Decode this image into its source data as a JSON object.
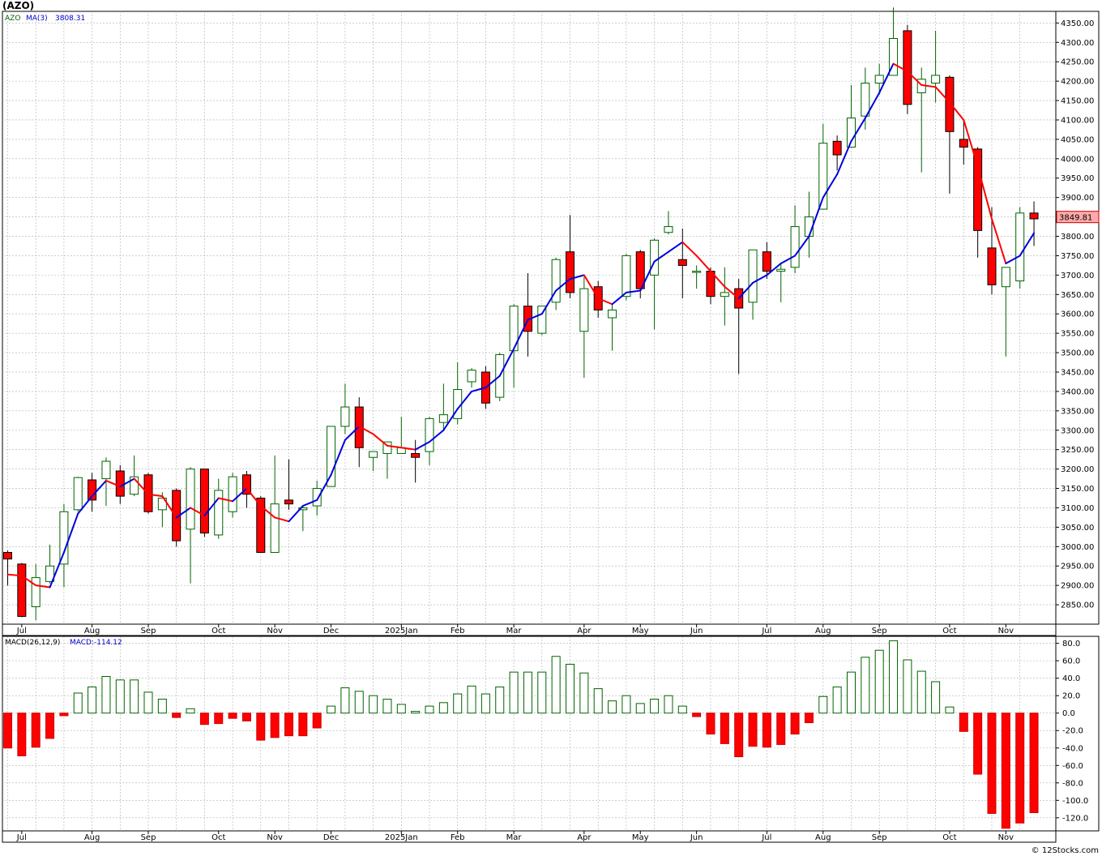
{
  "title": "(AZO)",
  "credit": "© 12Stocks.com",
  "colors": {
    "up_candle_stroke": "#006400",
    "down_candle_fill": "#ff0000",
    "ma_up": "#0000dd",
    "ma_down": "#ff0000",
    "grid": "#b0b0b0",
    "last_price_box": "#ffaaaa"
  },
  "price_panel": {
    "legend_symbol": "AZO",
    "legend_ma": "MA(3)",
    "legend_ma_value": "3808.31",
    "last_price_label": "3849.81"
  },
  "macd_panel": {
    "legend_macd": "MACD(26,12,9)",
    "legend_macd_value": "MACD:-114.12"
  },
  "chart_data": [
    {
      "type": "candlestick",
      "ylim": [
        2800,
        4380
      ],
      "yticks": [
        2850,
        2900,
        2950,
        3000,
        3050,
        3100,
        3150,
        3200,
        3250,
        3300,
        3350,
        3400,
        3450,
        3500,
        3550,
        3600,
        3650,
        3700,
        3750,
        3800,
        3850,
        3900,
        3950,
        4000,
        4050,
        4100,
        4150,
        4200,
        4250,
        4300,
        4350
      ],
      "ytick_labels": [
        "2850.00",
        "2900.00",
        "2950.00",
        "3000.00",
        "3050.00",
        "3100.00",
        "3150.00",
        "3200.00",
        "3250.00",
        "3300.00",
        "3350.00",
        "3400.00",
        "3450.00",
        "3500.00",
        "3550.00",
        "3600.00",
        "3650.00",
        "3700.00",
        "3750.00",
        "3800.00",
        "3850.00",
        "3900.00",
        "3950.00",
        "4000.00",
        "4050.00",
        "4100.00",
        "4150.00",
        "4200.00",
        "4250.00",
        "4300.00",
        "4350.00"
      ],
      "x_month_labels": [
        {
          "label": "Jul",
          "bar": 1
        },
        {
          "label": "Aug",
          "bar": 6
        },
        {
          "label": "Sep",
          "bar": 10
        },
        {
          "label": "Oct",
          "bar": 15
        },
        {
          "label": "Nov",
          "bar": 19
        },
        {
          "label": "Dec",
          "bar": 23
        },
        {
          "label": "2025Jan",
          "bar": 28
        },
        {
          "label": "Feb",
          "bar": 32
        },
        {
          "label": "Mar",
          "bar": 36
        },
        {
          "label": "Apr",
          "bar": 41
        },
        {
          "label": "May",
          "bar": 45
        },
        {
          "label": "Jun",
          "bar": 49
        },
        {
          "label": "Jul",
          "bar": 54
        },
        {
          "label": "Aug",
          "bar": 58
        },
        {
          "label": "Sep",
          "bar": 62
        },
        {
          "label": "Oct",
          "bar": 67
        },
        {
          "label": "Nov",
          "bar": 71
        }
      ],
      "candles": [
        {
          "o": 2985,
          "h": 2990,
          "l": 2900,
          "c": 2968
        },
        {
          "o": 2955,
          "h": 2958,
          "l": 2818,
          "c": 2820
        },
        {
          "o": 2845,
          "h": 2955,
          "l": 2810,
          "c": 2920
        },
        {
          "o": 2910,
          "h": 3005,
          "l": 2905,
          "c": 2950
        },
        {
          "o": 2955,
          "h": 3110,
          "l": 2895,
          "c": 3090
        },
        {
          "o": 3095,
          "h": 3180,
          "l": 3090,
          "c": 3178
        },
        {
          "o": 3172,
          "h": 3190,
          "l": 3090,
          "c": 3120
        },
        {
          "o": 3175,
          "h": 3230,
          "l": 3105,
          "c": 3220
        },
        {
          "o": 3195,
          "h": 3210,
          "l": 3110,
          "c": 3130
        },
        {
          "o": 3135,
          "h": 3235,
          "l": 3130,
          "c": 3180
        },
        {
          "o": 3185,
          "h": 3190,
          "l": 3085,
          "c": 3090
        },
        {
          "o": 3095,
          "h": 3140,
          "l": 3050,
          "c": 3125
        },
        {
          "o": 3145,
          "h": 3150,
          "l": 3000,
          "c": 3015
        },
        {
          "o": 3045,
          "h": 3205,
          "l": 2905,
          "c": 3200
        },
        {
          "o": 3200,
          "h": 3200,
          "l": 3025,
          "c": 3035
        },
        {
          "o": 3030,
          "h": 3175,
          "l": 3020,
          "c": 3145
        },
        {
          "o": 3090,
          "h": 3190,
          "l": 3075,
          "c": 3180
        },
        {
          "o": 3185,
          "h": 3195,
          "l": 3100,
          "c": 3135
        },
        {
          "o": 3125,
          "h": 3130,
          "l": 2985,
          "c": 2985
        },
        {
          "o": 2985,
          "h": 3235,
          "l": 2985,
          "c": 3110
        },
        {
          "o": 3120,
          "h": 3225,
          "l": 3095,
          "c": 3110
        },
        {
          "o": 3095,
          "h": 3105,
          "l": 3040,
          "c": 3100
        },
        {
          "o": 3105,
          "h": 3170,
          "l": 3080,
          "c": 3150
        },
        {
          "o": 3155,
          "h": 3310,
          "l": 3155,
          "c": 3310
        },
        {
          "o": 3310,
          "h": 3420,
          "l": 3290,
          "c": 3360
        },
        {
          "o": 3360,
          "h": 3385,
          "l": 3205,
          "c": 3255
        },
        {
          "o": 3230,
          "h": 3245,
          "l": 3195,
          "c": 3245
        },
        {
          "o": 3240,
          "h": 3270,
          "l": 3175,
          "c": 3270
        },
        {
          "o": 3240,
          "h": 3335,
          "l": 3240,
          "c": 3255
        },
        {
          "o": 3240,
          "h": 3275,
          "l": 3165,
          "c": 3230
        },
        {
          "o": 3245,
          "h": 3335,
          "l": 3210,
          "c": 3330
        },
        {
          "o": 3320,
          "h": 3420,
          "l": 3300,
          "c": 3340
        },
        {
          "o": 3330,
          "h": 3475,
          "l": 3315,
          "c": 3405
        },
        {
          "o": 3425,
          "h": 3460,
          "l": 3410,
          "c": 3455
        },
        {
          "o": 3450,
          "h": 3465,
          "l": 3355,
          "c": 3370
        },
        {
          "o": 3385,
          "h": 3500,
          "l": 3375,
          "c": 3495
        },
        {
          "o": 3505,
          "h": 3625,
          "l": 3410,
          "c": 3620
        },
        {
          "o": 3620,
          "h": 3705,
          "l": 3490,
          "c": 3555
        },
        {
          "o": 3550,
          "h": 3620,
          "l": 3545,
          "c": 3620
        },
        {
          "o": 3630,
          "h": 3745,
          "l": 3610,
          "c": 3740
        },
        {
          "o": 3760,
          "h": 3855,
          "l": 3640,
          "c": 3655
        },
        {
          "o": 3555,
          "h": 3695,
          "l": 3435,
          "c": 3665
        },
        {
          "o": 3670,
          "h": 3685,
          "l": 3590,
          "c": 3610
        },
        {
          "o": 3590,
          "h": 3625,
          "l": 3505,
          "c": 3610
        },
        {
          "o": 3645,
          "h": 3755,
          "l": 3635,
          "c": 3750
        },
        {
          "o": 3760,
          "h": 3765,
          "l": 3640,
          "c": 3665
        },
        {
          "o": 3700,
          "h": 3795,
          "l": 3560,
          "c": 3790
        },
        {
          "o": 3810,
          "h": 3865,
          "l": 3805,
          "c": 3825
        },
        {
          "o": 3740,
          "h": 3820,
          "l": 3640,
          "c": 3725
        },
        {
          "o": 3710,
          "h": 3725,
          "l": 3665,
          "c": 3710
        },
        {
          "o": 3710,
          "h": 3720,
          "l": 3625,
          "c": 3645
        },
        {
          "o": 3645,
          "h": 3720,
          "l": 3570,
          "c": 3655
        },
        {
          "o": 3665,
          "h": 3690,
          "l": 3445,
          "c": 3615
        },
        {
          "o": 3630,
          "h": 3755,
          "l": 3585,
          "c": 3765
        },
        {
          "o": 3760,
          "h": 3785,
          "l": 3690,
          "c": 3710
        },
        {
          "o": 3710,
          "h": 3730,
          "l": 3630,
          "c": 3715
        },
        {
          "o": 3720,
          "h": 3880,
          "l": 3705,
          "c": 3825
        },
        {
          "o": 3800,
          "h": 3915,
          "l": 3745,
          "c": 3850
        },
        {
          "o": 3870,
          "h": 4090,
          "l": 3870,
          "c": 4040
        },
        {
          "o": 4045,
          "h": 4060,
          "l": 3970,
          "c": 4010
        },
        {
          "o": 4030,
          "h": 4190,
          "l": 4030,
          "c": 4105
        },
        {
          "o": 4110,
          "h": 4235,
          "l": 4075,
          "c": 4195
        },
        {
          "o": 4195,
          "h": 4245,
          "l": 4165,
          "c": 4215
        },
        {
          "o": 4215,
          "h": 4390,
          "l": 4215,
          "c": 4310
        },
        {
          "o": 4330,
          "h": 4345,
          "l": 4115,
          "c": 4140
        },
        {
          "o": 4170,
          "h": 4235,
          "l": 3965,
          "c": 4205
        },
        {
          "o": 4195,
          "h": 4330,
          "l": 4145,
          "c": 4215
        },
        {
          "o": 4210,
          "h": 4215,
          "l": 3910,
          "c": 4070
        },
        {
          "o": 4050,
          "h": 4100,
          "l": 3985,
          "c": 4030
        },
        {
          "o": 4025,
          "h": 4030,
          "l": 3745,
          "c": 3815
        },
        {
          "o": 3770,
          "h": 3875,
          "l": 3650,
          "c": 3675
        },
        {
          "o": 3670,
          "h": 3715,
          "l": 3490,
          "c": 3720
        },
        {
          "o": 3685,
          "h": 3875,
          "l": 3665,
          "c": 3860
        },
        {
          "o": 3860,
          "h": 3890,
          "l": 3775,
          "c": 3845
        }
      ],
      "ma3": [
        2928,
        2925,
        2900,
        2895,
        2985,
        3085,
        3130,
        3170,
        3155,
        3175,
        3135,
        3130,
        3075,
        3100,
        3080,
        3125,
        3117,
        3150,
        3105,
        3075,
        3065,
        3105,
        3120,
        3185,
        3275,
        3310,
        3290,
        3260,
        3255,
        3250,
        3270,
        3300,
        3355,
        3400,
        3410,
        3440,
        3510,
        3585,
        3600,
        3660,
        3690,
        3700,
        3640,
        3625,
        3655,
        3660,
        3735,
        3760,
        3785,
        3750,
        3710,
        3670,
        3640,
        3680,
        3700,
        3730,
        3750,
        3800,
        3900,
        3960,
        4045,
        4105,
        4170,
        4245,
        4225,
        4190,
        4185,
        4145,
        4100,
        3980,
        3845,
        3730,
        3750,
        3808.31
      ]
    },
    {
      "type": "bar",
      "name": "MACD(26,12,9)",
      "ylim": [
        -135,
        88
      ],
      "yticks": [
        -120,
        -100,
        -80,
        -60,
        -40,
        -20,
        0,
        20,
        40,
        60,
        80
      ],
      "ytick_labels": [
        "-120.0",
        "-100.0",
        "-80.0",
        "-60.0",
        "-40.0",
        "-20.0",
        "0.0",
        "20.0",
        "40.0",
        "60.0",
        "80.0"
      ],
      "values": [
        -40,
        -49,
        -39,
        -29,
        -3,
        23,
        30,
        42,
        38,
        38,
        24,
        16,
        -5,
        5,
        -13,
        -12,
        -6,
        -9,
        -31,
        -28,
        -26,
        -26,
        -17,
        8,
        29,
        25,
        20,
        16,
        10,
        2,
        8,
        12,
        22,
        31,
        22,
        30,
        47,
        47,
        47,
        65,
        56,
        46,
        28,
        14,
        20,
        11,
        16,
        20,
        8,
        -4,
        -24,
        -35,
        -50,
        -38,
        -39,
        -36,
        -24,
        -11,
        19,
        30,
        47,
        64,
        72,
        83,
        61,
        48,
        36,
        7,
        -21,
        -70,
        -115,
        -132,
        -126,
        -114.12
      ]
    }
  ]
}
